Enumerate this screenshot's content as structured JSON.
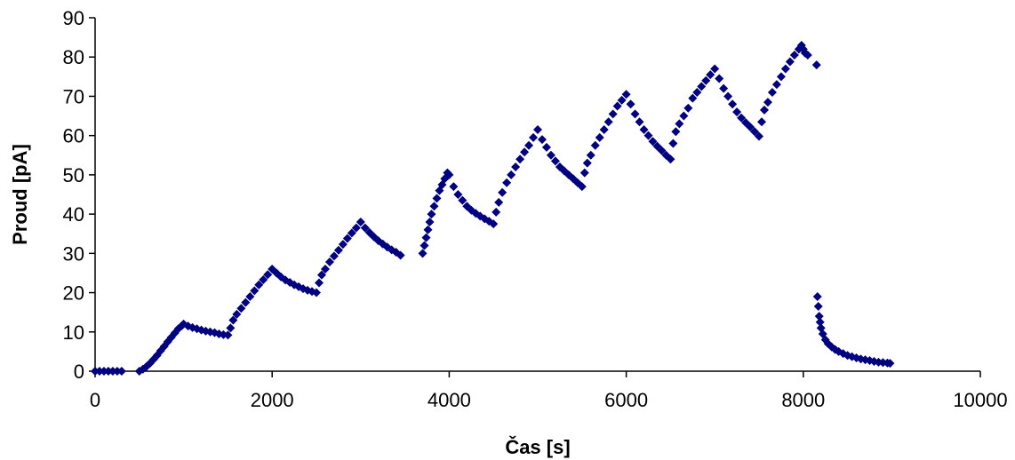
{
  "chart_data": {
    "type": "scatter",
    "xlabel": "Čas [s]",
    "ylabel": "Proud [pA]",
    "xlim": [
      0,
      10000
    ],
    "ylim": [
      0,
      90
    ],
    "xticks": [
      0,
      2000,
      4000,
      6000,
      8000,
      10000
    ],
    "yticks": [
      0,
      10,
      20,
      30,
      40,
      50,
      60,
      70,
      80,
      90
    ],
    "grid": false,
    "legend": "none",
    "marker_color": "#000080",
    "marker": "diamond",
    "points": [
      [
        0,
        0
      ],
      [
        50,
        0
      ],
      [
        100,
        0
      ],
      [
        150,
        0
      ],
      [
        200,
        0
      ],
      [
        250,
        0
      ],
      [
        300,
        0
      ],
      [
        500,
        0
      ],
      [
        540,
        0.5
      ],
      [
        580,
        1.2
      ],
      [
        620,
        2
      ],
      [
        660,
        3
      ],
      [
        700,
        4
      ],
      [
        740,
        5.2
      ],
      [
        780,
        6.3
      ],
      [
        820,
        7.5
      ],
      [
        860,
        8.6
      ],
      [
        900,
        9.7
      ],
      [
        940,
        10.8
      ],
      [
        980,
        11.6
      ],
      [
        1000,
        12
      ],
      [
        1050,
        11.5
      ],
      [
        1100,
        11.1
      ],
      [
        1150,
        10.8
      ],
      [
        1200,
        10.5
      ],
      [
        1250,
        10.2
      ],
      [
        1300,
        10
      ],
      [
        1350,
        9.8
      ],
      [
        1400,
        9.5
      ],
      [
        1450,
        9.3
      ],
      [
        1500,
        9.2
      ],
      [
        1530,
        11
      ],
      [
        1560,
        13
      ],
      [
        1600,
        14.5
      ],
      [
        1650,
        16
      ],
      [
        1700,
        17.5
      ],
      [
        1750,
        19
      ],
      [
        1800,
        20.5
      ],
      [
        1850,
        22
      ],
      [
        1900,
        23.3
      ],
      [
        1950,
        24.6
      ],
      [
        2000,
        26
      ],
      [
        2050,
        25
      ],
      [
        2100,
        24
      ],
      [
        2150,
        23.2
      ],
      [
        2200,
        22.6
      ],
      [
        2250,
        22
      ],
      [
        2300,
        21.5
      ],
      [
        2350,
        21
      ],
      [
        2400,
        20.6
      ],
      [
        2450,
        20.3
      ],
      [
        2500,
        20
      ],
      [
        2530,
        22.5
      ],
      [
        2560,
        24.5
      ],
      [
        2600,
        26
      ],
      [
        2650,
        27.8
      ],
      [
        2700,
        29.3
      ],
      [
        2750,
        30.8
      ],
      [
        2800,
        32.3
      ],
      [
        2850,
        33.8
      ],
      [
        2900,
        35.2
      ],
      [
        2950,
        36.5
      ],
      [
        3000,
        38
      ],
      [
        3050,
        36.5
      ],
      [
        3100,
        35.3
      ],
      [
        3150,
        34.2
      ],
      [
        3200,
        33.2
      ],
      [
        3250,
        32.4
      ],
      [
        3300,
        31.6
      ],
      [
        3350,
        30.9
      ],
      [
        3400,
        30.3
      ],
      [
        3450,
        29.5
      ],
      [
        3700,
        30
      ],
      [
        3720,
        32
      ],
      [
        3740,
        34
      ],
      [
        3760,
        36
      ],
      [
        3780,
        38
      ],
      [
        3800,
        40
      ],
      [
        3830,
        42
      ],
      [
        3860,
        44
      ],
      [
        3890,
        46
      ],
      [
        3920,
        47.5
      ],
      [
        3950,
        49
      ],
      [
        3980,
        50.5
      ],
      [
        4000,
        50
      ],
      [
        4050,
        47
      ],
      [
        4100,
        45
      ],
      [
        4150,
        43.5
      ],
      [
        4200,
        42
      ],
      [
        4250,
        41
      ],
      [
        4300,
        40.2
      ],
      [
        4350,
        39.5
      ],
      [
        4400,
        38.8
      ],
      [
        4450,
        38.2
      ],
      [
        4500,
        37.5
      ],
      [
        4530,
        40.5
      ],
      [
        4560,
        43
      ],
      [
        4600,
        45.5
      ],
      [
        4650,
        48
      ],
      [
        4700,
        50
      ],
      [
        4750,
        52
      ],
      [
        4800,
        54
      ],
      [
        4850,
        55.8
      ],
      [
        4900,
        57.5
      ],
      [
        4950,
        59.5
      ],
      [
        5000,
        61.5
      ],
      [
        5050,
        59
      ],
      [
        5100,
        57
      ],
      [
        5150,
        55
      ],
      [
        5200,
        53.5
      ],
      [
        5250,
        52
      ],
      [
        5300,
        51
      ],
      [
        5350,
        50
      ],
      [
        5400,
        49
      ],
      [
        5450,
        48
      ],
      [
        5500,
        47
      ],
      [
        5530,
        50.5
      ],
      [
        5560,
        53
      ],
      [
        5600,
        55
      ],
      [
        5650,
        57.5
      ],
      [
        5700,
        59.5
      ],
      [
        5750,
        61.5
      ],
      [
        5800,
        63.5
      ],
      [
        5850,
        65.5
      ],
      [
        5900,
        67.5
      ],
      [
        5950,
        69
      ],
      [
        6000,
        70.5
      ],
      [
        6050,
        68
      ],
      [
        6100,
        65.5
      ],
      [
        6150,
        63.5
      ],
      [
        6200,
        61.5
      ],
      [
        6250,
        60
      ],
      [
        6300,
        58.5
      ],
      [
        6350,
        57.3
      ],
      [
        6400,
        56.2
      ],
      [
        6450,
        55
      ],
      [
        6500,
        54
      ],
      [
        6530,
        58
      ],
      [
        6560,
        61
      ],
      [
        6600,
        63
      ],
      [
        6650,
        65
      ],
      [
        6700,
        67
      ],
      [
        6750,
        69.5
      ],
      [
        6800,
        71
      ],
      [
        6850,
        72.5
      ],
      [
        6900,
        74
      ],
      [
        6950,
        75.5
      ],
      [
        7000,
        77
      ],
      [
        7050,
        74.5
      ],
      [
        7100,
        72
      ],
      [
        7150,
        70
      ],
      [
        7200,
        68
      ],
      [
        7250,
        66
      ],
      [
        7300,
        64.5
      ],
      [
        7350,
        63.3
      ],
      [
        7400,
        62.2
      ],
      [
        7450,
        61
      ],
      [
        7500,
        59.8
      ],
      [
        7530,
        63.5
      ],
      [
        7560,
        66.5
      ],
      [
        7600,
        68.5
      ],
      [
        7650,
        71
      ],
      [
        7700,
        73
      ],
      [
        7750,
        75
      ],
      [
        7800,
        77
      ],
      [
        7850,
        78.8
      ],
      [
        7900,
        80.5
      ],
      [
        7950,
        82
      ],
      [
        7980,
        83
      ],
      [
        8000,
        82
      ],
      [
        8020,
        81
      ],
      [
        8050,
        80.5
      ],
      [
        8150,
        78
      ],
      [
        8160,
        19
      ],
      [
        8170,
        16.5
      ],
      [
        8180,
        14
      ],
      [
        8190,
        12.5
      ],
      [
        8200,
        11
      ],
      [
        8220,
        9.5
      ],
      [
        8250,
        8
      ],
      [
        8280,
        7
      ],
      [
        8320,
        6.2
      ],
      [
        8360,
        5.5
      ],
      [
        8400,
        5
      ],
      [
        8450,
        4.5
      ],
      [
        8500,
        4
      ],
      [
        8550,
        3.7
      ],
      [
        8600,
        3.4
      ],
      [
        8650,
        3.1
      ],
      [
        8700,
        2.9
      ],
      [
        8750,
        2.7
      ],
      [
        8800,
        2.5
      ],
      [
        8850,
        2.3
      ],
      [
        8900,
        2.2
      ],
      [
        8950,
        2.1
      ],
      [
        8980,
        2
      ]
    ]
  }
}
